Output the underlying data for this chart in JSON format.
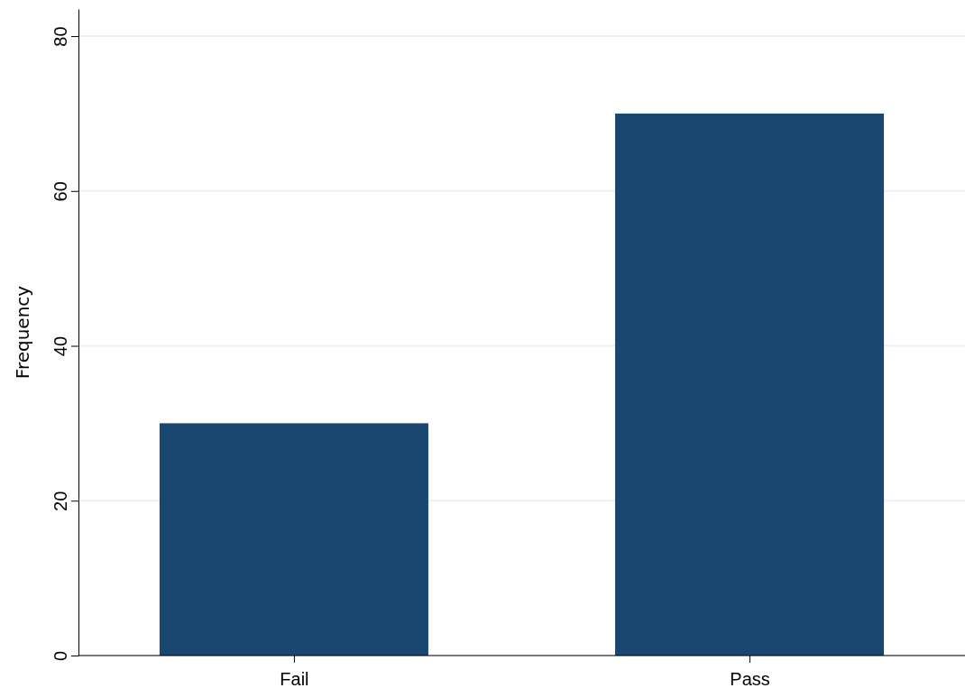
{
  "chart_data": {
    "type": "bar",
    "ylabel": "Frequency",
    "categories": [
      "Fail",
      "Pass"
    ],
    "values": [
      30,
      70
    ],
    "color": "#1a476f",
    "ylim": [
      0,
      83.5
    ],
    "yticks": [
      0,
      20,
      40,
      60,
      80
    ],
    "grid": "y"
  }
}
